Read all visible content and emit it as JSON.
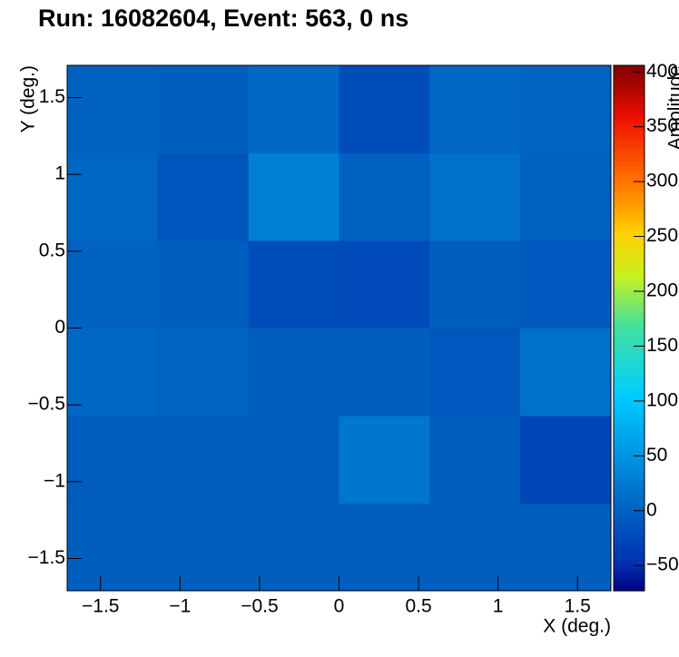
{
  "chart_data": {
    "type": "heatmap",
    "title": "Run: 16082604, Event: 563, 0 ns",
    "x_label": "X (deg.)",
    "y_label": "Y (deg.)",
    "z_label": "Amplitude",
    "xbins": [
      -1.71,
      -1.14,
      -0.57,
      0,
      0.57,
      1.14,
      1.71
    ],
    "ybins": [
      -1.71,
      -1.14,
      -0.57,
      0,
      0.57,
      1.14,
      1.71
    ],
    "z": [
      [
        -3,
        -3,
        -3,
        -3,
        -3,
        -3
      ],
      [
        -5,
        -5,
        -5,
        22,
        -3,
        -28
      ],
      [
        5,
        2,
        -3,
        -3,
        -10,
        15
      ],
      [
        0,
        -3,
        -20,
        -22,
        -3,
        -8
      ],
      [
        5,
        -12,
        30,
        0,
        15,
        0
      ],
      [
        0,
        -3,
        8,
        -20,
        5,
        2
      ]
    ],
    "xlim": [
      -1.71,
      1.71
    ],
    "ylim": [
      -1.71,
      1.71
    ],
    "zlim": [
      -73,
      406
    ],
    "xticks": [
      {
        "value": -1.5,
        "label": "−1.5"
      },
      {
        "value": -1,
        "label": "−1"
      },
      {
        "value": -0.5,
        "label": "−0.5"
      },
      0,
      0.5,
      1,
      1.5
    ],
    "yticks": [
      {
        "value": -1.5,
        "label": "−1.5"
      },
      {
        "value": -1,
        "label": "−1"
      },
      {
        "value": -0.5,
        "label": "−0.5"
      },
      0,
      0.5,
      1,
      1.5
    ],
    "zticks": [
      {
        "value": -50,
        "label": "−50"
      },
      0,
      50,
      100,
      150,
      200,
      250,
      300,
      350,
      400
    ],
    "colorscale": [
      [
        0,
        "#000080"
      ],
      [
        0.05,
        "#0030b0"
      ],
      [
        0.15,
        "#0060c0"
      ],
      [
        0.25,
        "#0090e0"
      ],
      [
        0.37,
        "#00ccff"
      ],
      [
        0.5,
        "#40e0a0"
      ],
      [
        0.6,
        "#c8f020"
      ],
      [
        0.68,
        "#ffd000"
      ],
      [
        0.8,
        "#ff6000"
      ],
      [
        0.9,
        "#ee1000"
      ],
      [
        1,
        "#800000"
      ]
    ]
  }
}
